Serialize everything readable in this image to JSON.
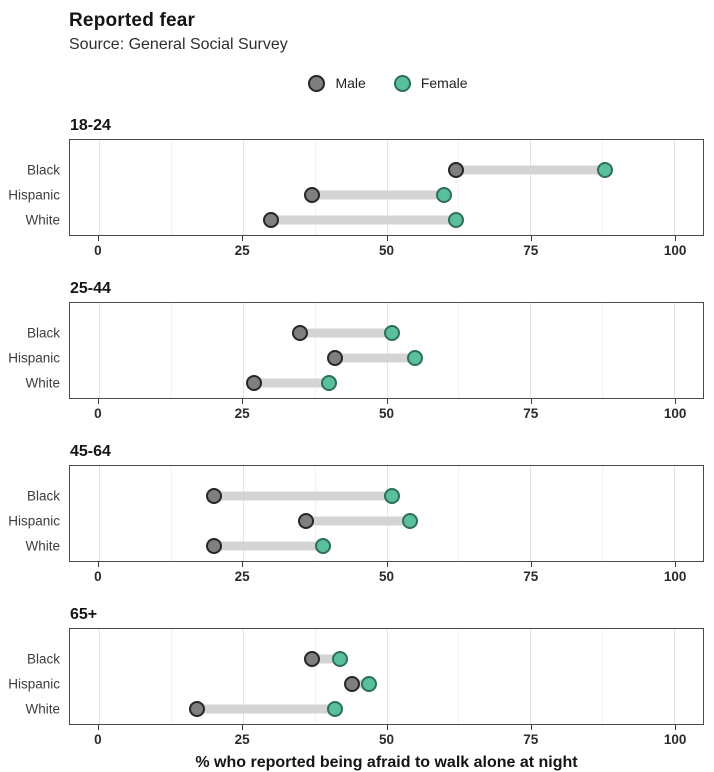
{
  "header": {
    "title": "Reported fear",
    "subtitle": "Source: General Social Survey"
  },
  "legend": {
    "position": "top-center",
    "items": [
      {
        "label": "Male",
        "fill": "#7f7f7f",
        "stroke": "#262626"
      },
      {
        "label": "Female",
        "fill": "#5abf9d",
        "stroke": "#2f6e58"
      }
    ]
  },
  "chart_data": {
    "type": "dumbbell",
    "title": "Reported fear",
    "subtitle": "Source: General Social Survey",
    "xlabel": "% who reported being afraid to walk alone at night",
    "ylabel": "",
    "x_domain": [
      -5,
      105
    ],
    "x_ticks": [
      0,
      25,
      50,
      75,
      100
    ],
    "x_minor_ticks": [
      12.5,
      37.5,
      62.5,
      87.5
    ],
    "grid": "vertical-major-and-minor",
    "categories": [
      "Black",
      "Hispanic",
      "White"
    ],
    "series_names": [
      "Male",
      "Female"
    ],
    "facets": [
      {
        "label": "18-24",
        "rows": [
          {
            "category": "Black",
            "male": 62,
            "female": 88
          },
          {
            "category": "Hispanic",
            "male": 37,
            "female": 60
          },
          {
            "category": "White",
            "male": 30,
            "female": 62
          }
        ]
      },
      {
        "label": "25-44",
        "rows": [
          {
            "category": "Black",
            "male": 35,
            "female": 51
          },
          {
            "category": "Hispanic",
            "male": 41,
            "female": 55
          },
          {
            "category": "White",
            "male": 27,
            "female": 40
          }
        ]
      },
      {
        "label": "45-64",
        "rows": [
          {
            "category": "Black",
            "male": 20,
            "female": 51
          },
          {
            "category": "Hispanic",
            "male": 36,
            "female": 54
          },
          {
            "category": "White",
            "male": 20,
            "female": 39
          }
        ]
      },
      {
        "label": "65+",
        "rows": [
          {
            "category": "Black",
            "male": 37,
            "female": 42
          },
          {
            "category": "Hispanic",
            "male": 44,
            "female": 47
          },
          {
            "category": "White",
            "male": 17,
            "female": 41
          }
        ]
      }
    ],
    "colors": {
      "male_fill": "#7f7f7f",
      "male_stroke": "#262626",
      "female_fill": "#5abf9d",
      "female_stroke": "#2f6e58",
      "segment": "#d4d4d4",
      "gridline_major": "#e4e4e4",
      "gridline_minor": "#f2f2f2",
      "panel_border": "#4b4b4b"
    }
  }
}
